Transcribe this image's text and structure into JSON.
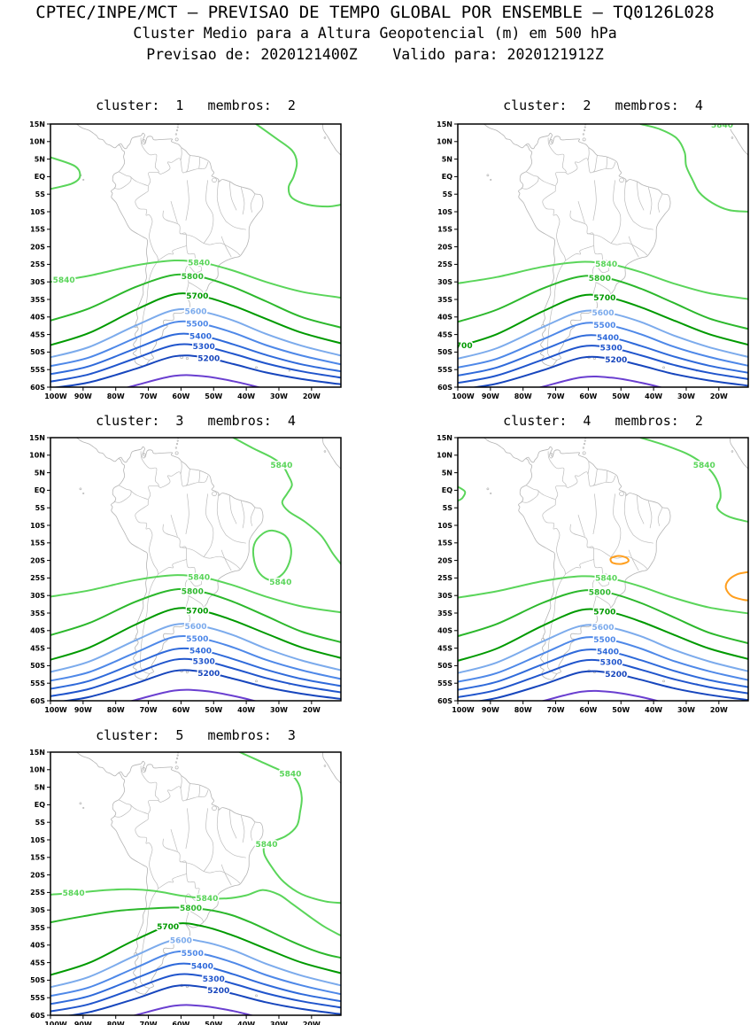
{
  "header": {
    "line1": "CPTEC/INPE/MCT – PREVISAO DE TEMPO GLOBAL POR ENSEMBLE – TQ0126L028",
    "line2": "Cluster Medio para a Altura Geopotencial (m) em 500 hPa",
    "line3": "Previsao de: 2020121400Z    Valido para: 2020121912Z"
  },
  "chart_data": {
    "type": "contour-map",
    "title": "Cluster Medio para a Altura Geopotencial (m) em 500 hPa",
    "model": "TQ0126L028",
    "institution": "CPTEC/INPE/MCT",
    "init_time": "2020121400Z",
    "valid_time": "2020121912Z",
    "region": "South America",
    "lat_ticks": [
      "15N",
      "10N",
      "5N",
      "EQ",
      "5S",
      "10S",
      "15S",
      "20S",
      "25S",
      "30S",
      "35S",
      "40S",
      "45S",
      "50S",
      "55S",
      "60S"
    ],
    "lon_ticks": [
      "100W",
      "90W",
      "80W",
      "70W",
      "60W",
      "50W",
      "40W",
      "30W",
      "20W"
    ],
    "lat_range": [
      "15N",
      "60S"
    ],
    "lon_range": [
      "100W",
      "11W"
    ],
    "contour_levels": [
      {
        "value": "5840",
        "color": "#5ad55a",
        "labeled": true
      },
      {
        "value": "5800",
        "color": "#2cb82c",
        "labeled": true
      },
      {
        "value": "5700",
        "color": "#009a00",
        "labeled": true
      },
      {
        "value": "5600",
        "color": "#7cabec",
        "labeled": true
      },
      {
        "value": "5500",
        "color": "#4e88e8",
        "labeled": true
      },
      {
        "value": "5400",
        "color": "#2f6ada",
        "labeled": true
      },
      {
        "value": "5300",
        "color": "#2055cc",
        "labeled": true
      },
      {
        "value": "5200",
        "color": "#1746bd",
        "labeled": true
      },
      {
        "value": "5100",
        "color": "#6a3fd0",
        "labeled": false
      },
      {
        "value": "5880",
        "color": "#ff9f1f",
        "labeled": false
      }
    ],
    "map_outline_color": "#b3b3b3",
    "panels": [
      {
        "cluster": "1",
        "membros": "2",
        "title": "cluster:  1   membros:  2",
        "visible_contour_labels": [
          "5840",
          "5840",
          "5800",
          "5700",
          "5600",
          "5500",
          "5400",
          "5300",
          "5200"
        ]
      },
      {
        "cluster": "2",
        "membros": "4",
        "title": "cluster:  2   membros:  4",
        "visible_contour_labels": [
          "5840",
          "5840",
          "5800",
          "5700",
          "700",
          "5600",
          "5500",
          "5400",
          "5300",
          "5200"
        ]
      },
      {
        "cluster": "3",
        "membros": "4",
        "title": "cluster:  3   membros:  4",
        "visible_contour_labels": [
          "5840",
          "5840",
          "5840",
          "5800",
          "5700",
          "5600",
          "5500",
          "5400",
          "5300",
          "5200"
        ]
      },
      {
        "cluster": "4",
        "membros": "2",
        "title": "cluster:  4   membros:  2",
        "visible_contour_labels": [
          "5840",
          "5840",
          "5800",
          "5700",
          "5600",
          "5500",
          "5400",
          "5300",
          "5200"
        ]
      },
      {
        "cluster": "5",
        "membros": "3",
        "title": "cluster:  5   membros:  3",
        "visible_contour_labels": [
          "5840",
          "5840",
          "5840",
          "5840",
          "5800",
          "5700",
          "5600",
          "5500",
          "5400",
          "5300",
          "5200"
        ]
      }
    ]
  }
}
